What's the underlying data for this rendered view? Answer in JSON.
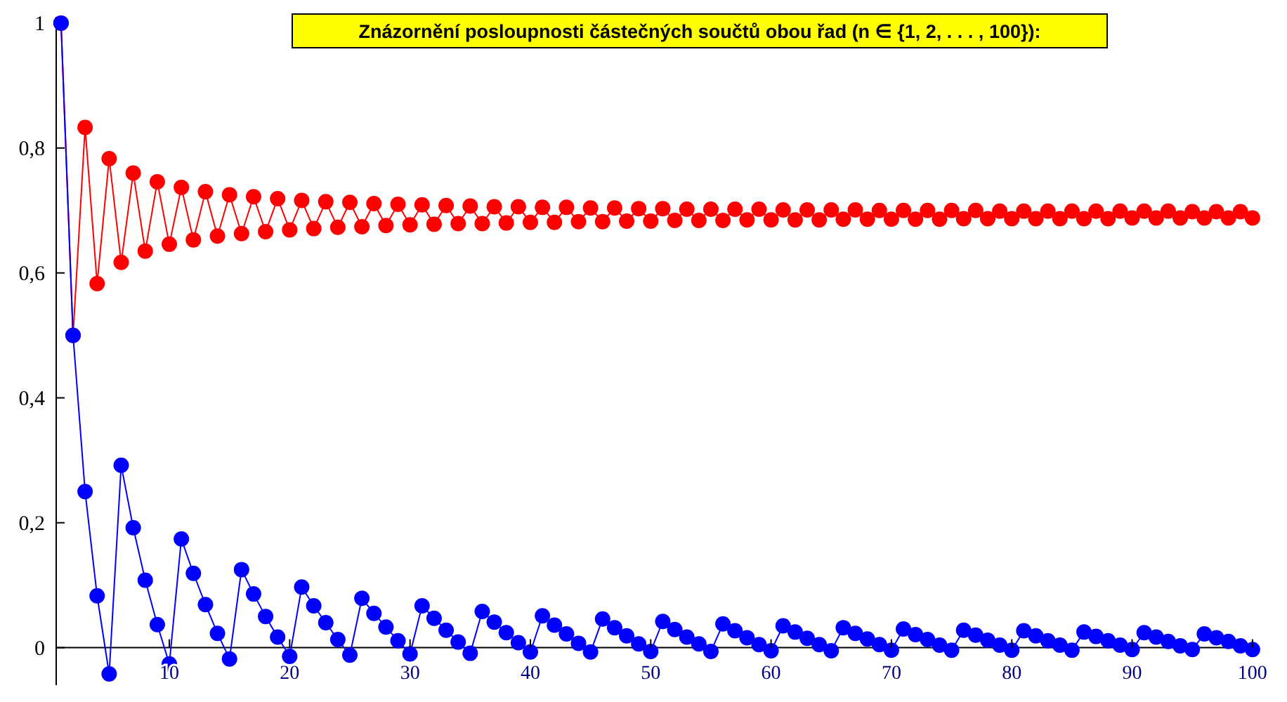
{
  "chart_data": {
    "type": "line",
    "title": "Znázornění posloupnosti částečných součtů obou řad (n ∈ {1, 2, . . . , 100}):",
    "x": [
      1,
      2,
      3,
      4,
      5,
      6,
      7,
      8,
      9,
      10,
      11,
      12,
      13,
      14,
      15,
      16,
      17,
      18,
      19,
      20,
      21,
      22,
      23,
      24,
      25,
      26,
      27,
      28,
      29,
      30,
      31,
      32,
      33,
      34,
      35,
      36,
      37,
      38,
      39,
      40,
      41,
      42,
      43,
      44,
      45,
      46,
      47,
      48,
      49,
      50,
      51,
      52,
      53,
      54,
      55,
      56,
      57,
      58,
      59,
      60,
      61,
      62,
      63,
      64,
      65,
      66,
      67,
      68,
      69,
      70,
      71,
      72,
      73,
      74,
      75,
      76,
      77,
      78,
      79,
      80,
      81,
      82,
      83,
      84,
      85,
      86,
      87,
      88,
      89,
      90,
      91,
      92,
      93,
      94,
      95,
      96,
      97,
      98,
      99,
      100
    ],
    "series": [
      {
        "color": "#ff0000",
        "values": [
          1,
          0.5,
          0.833,
          0.583,
          0.783,
          0.617,
          0.76,
          0.635,
          0.746,
          0.646,
          0.737,
          0.653,
          0.73,
          0.659,
          0.725,
          0.663,
          0.722,
          0.666,
          0.719,
          0.669,
          0.716,
          0.671,
          0.714,
          0.673,
          0.713,
          0.674,
          0.711,
          0.676,
          0.71,
          0.677,
          0.709,
          0.678,
          0.708,
          0.679,
          0.707,
          0.679,
          0.706,
          0.68,
          0.706,
          0.681,
          0.705,
          0.681,
          0.705,
          0.682,
          0.704,
          0.682,
          0.704,
          0.683,
          0.703,
          0.683,
          0.703,
          0.684,
          0.702,
          0.684,
          0.702,
          0.684,
          0.702,
          0.685,
          0.702,
          0.685,
          0.701,
          0.685,
          0.701,
          0.685,
          0.701,
          0.686,
          0.701,
          0.686,
          0.7,
          0.686,
          0.7,
          0.686,
          0.7,
          0.686,
          0.7,
          0.687,
          0.7,
          0.687,
          0.699,
          0.687,
          0.699,
          0.687,
          0.699,
          0.687,
          0.699,
          0.687,
          0.699,
          0.687,
          0.699,
          0.688,
          0.699,
          0.688,
          0.699,
          0.688,
          0.698,
          0.688,
          0.698,
          0.688,
          0.698,
          0.688
        ]
      },
      {
        "color": "#0000ff",
        "values": [
          1,
          0.5,
          0.25,
          0.083,
          -0.042,
          0.292,
          0.192,
          0.108,
          0.037,
          -0.026,
          0.174,
          0.119,
          0.069,
          0.023,
          -0.018,
          0.125,
          0.086,
          0.05,
          0.017,
          -0.014,
          0.097,
          0.067,
          0.04,
          0.013,
          -0.012,
          0.079,
          0.055,
          0.033,
          0.011,
          -0.01,
          0.067,
          0.047,
          0.028,
          0.009,
          -0.009,
          0.058,
          0.041,
          0.024,
          0.008,
          -0.007,
          0.051,
          0.036,
          0.022,
          0.007,
          -0.007,
          0.046,
          0.032,
          0.019,
          0.006,
          -0.006,
          0.042,
          0.029,
          0.017,
          0.006,
          -0.006,
          0.038,
          0.027,
          0.016,
          0.005,
          -0.005,
          0.035,
          0.025,
          0.015,
          0.005,
          -0.005,
          0.032,
          0.023,
          0.014,
          0.005,
          -0.004,
          0.03,
          0.021,
          0.013,
          0.004,
          -0.004,
          0.028,
          0.02,
          0.012,
          0.004,
          -0.004,
          0.027,
          0.019,
          0.011,
          0.004,
          -0.004,
          0.025,
          0.018,
          0.011,
          0.004,
          -0.003,
          0.024,
          0.017,
          0.01,
          0.003,
          -0.003,
          0.022,
          0.016,
          0.01,
          0.003,
          -0.003
        ]
      }
    ],
    "xlim": [
      0.6,
      100.3
    ],
    "ylim": [
      -0.06,
      1.01
    ],
    "xticks": [
      10,
      20,
      30,
      40,
      50,
      60,
      70,
      80,
      90,
      100
    ],
    "yticks": [
      0,
      {
        "value": 0.2,
        "label": "0,2"
      },
      {
        "value": 0.4,
        "label": "0,4"
      },
      {
        "value": 0.6,
        "label": "0,6"
      },
      {
        "value": 0.8,
        "label": "0,8"
      },
      1
    ],
    "marker": "circle",
    "line_style": "solid",
    "grid": false
  }
}
